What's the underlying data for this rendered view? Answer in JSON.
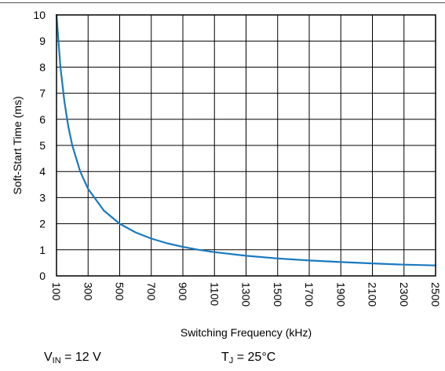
{
  "chart_data": {
    "type": "line",
    "xlabel": "Switching Frequency (kHz)",
    "ylabel": "Soft-Start Time (ms)",
    "xlim": [
      100,
      2500
    ],
    "ylim": [
      0,
      10
    ],
    "x_ticks": [
      "100",
      "300",
      "500",
      "700",
      "900",
      "1100",
      "1300",
      "1500",
      "1700",
      "1900",
      "2100",
      "2300",
      "2500"
    ],
    "y_ticks": [
      "0",
      "1",
      "2",
      "3",
      "4",
      "5",
      "6",
      "7",
      "8",
      "9",
      "10"
    ],
    "grid": true,
    "line_color": "#1a7abf",
    "series": [
      {
        "x": [
          100,
          125,
          150,
          175,
          200,
          250,
          300,
          400,
          500,
          600,
          700,
          800,
          900,
          1000,
          1100,
          1300,
          1500,
          1700,
          1900,
          2100,
          2300,
          2500
        ],
        "values": [
          10,
          8.0,
          6.67,
          5.71,
          5.0,
          4.0,
          3.33,
          2.5,
          2.0,
          1.67,
          1.43,
          1.25,
          1.11,
          1.0,
          0.91,
          0.77,
          0.67,
          0.59,
          0.53,
          0.48,
          0.43,
          0.4
        ]
      }
    ]
  },
  "conditions": {
    "vin_symbol": "V",
    "vin_sub": "IN",
    "vin_value": " = 12 V",
    "tj_symbol": "T",
    "tj_sub": "J",
    "tj_value": " = 25°C"
  }
}
